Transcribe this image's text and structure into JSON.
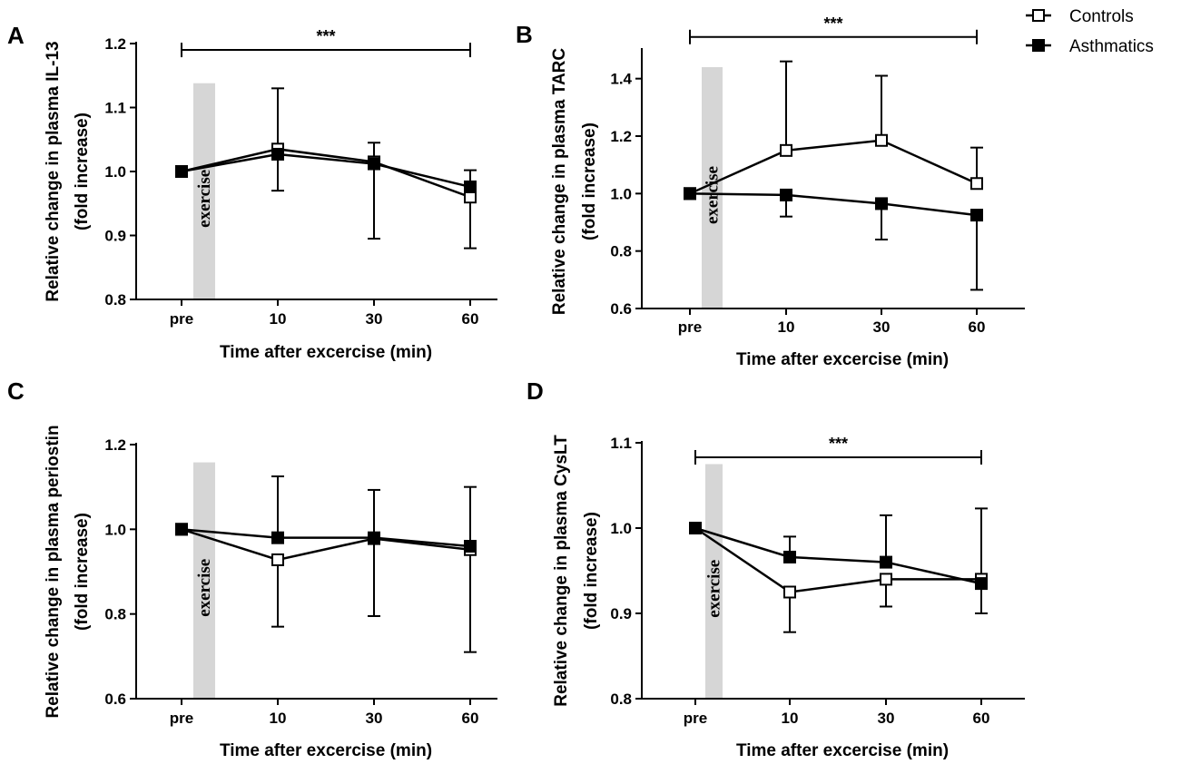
{
  "legend": {
    "items": [
      {
        "label": "Controls",
        "marker": "open-square"
      },
      {
        "label": "Asthmatics",
        "marker": "filled-square"
      }
    ]
  },
  "chart_data": [
    {
      "panel": "A",
      "type": "line",
      "categories": [
        "pre",
        "10",
        "30",
        "60"
      ],
      "xlabel": "Time after excercise (min)",
      "ylabel": [
        "Relative change in plasma IL-13",
        "(fold increase)"
      ],
      "ylim": [
        0.8,
        1.2
      ],
      "yticks": [
        0.8,
        0.9,
        1.0,
        1.1,
        1.2
      ],
      "ytick_labels": [
        "0.8",
        "0.9",
        "1.0",
        "1.1",
        "1.2"
      ],
      "series": [
        {
          "name": "Controls",
          "marker": "open-square",
          "values": [
            1.0,
            1.035,
            1.015,
            0.96
          ],
          "err_upper": [
            null,
            1.13,
            1.045,
            null
          ],
          "err_lower": [
            null,
            null,
            null,
            0.88
          ]
        },
        {
          "name": "Asthmatics",
          "marker": "filled-square",
          "values": [
            1.0,
            1.027,
            1.012,
            0.976
          ],
          "err_upper": [
            null,
            null,
            null,
            1.002
          ],
          "err_lower": [
            null,
            0.97,
            0.895,
            null
          ]
        }
      ],
      "annotation": {
        "type": "significance-bracket",
        "label": "***",
        "from": "pre",
        "to": "60",
        "y": 1.19
      },
      "shaded_band": {
        "label": "exercise",
        "top": 1.138
      }
    },
    {
      "panel": "B",
      "type": "line",
      "categories": [
        "pre",
        "10",
        "30",
        "60"
      ],
      "xlabel": "Time after excercise (min)",
      "ylabel": [
        "Relative change in plasma TARC",
        "(fold increase)"
      ],
      "ylim": [
        0.6,
        1.5
      ],
      "yticks": [
        0.6,
        0.8,
        1.0,
        1.2,
        1.4
      ],
      "ytick_labels": [
        "0.6",
        "0.8",
        "1.0",
        "1.2",
        "1.4"
      ],
      "series": [
        {
          "name": "Controls",
          "marker": "open-square",
          "values": [
            1.0,
            1.15,
            1.185,
            1.035
          ],
          "err_upper": [
            null,
            1.46,
            1.41,
            1.16
          ],
          "err_lower": [
            null,
            null,
            null,
            null
          ]
        },
        {
          "name": "Asthmatics",
          "marker": "filled-square",
          "values": [
            1.0,
            0.995,
            0.965,
            0.925
          ],
          "err_upper": [
            null,
            null,
            null,
            null
          ],
          "err_lower": [
            null,
            0.92,
            0.84,
            0.665
          ]
        }
      ],
      "annotation": {
        "type": "significance-bracket",
        "label": "***",
        "from": "pre",
        "to": "60",
        "y": 1.545
      },
      "shaded_band": {
        "label": "exercise",
        "top": 1.44
      }
    },
    {
      "panel": "C",
      "type": "line",
      "categories": [
        "pre",
        "10",
        "30",
        "60"
      ],
      "xlabel": "Time after excercise (min)",
      "ylabel": [
        "Relative change in plasma periostin",
        "(fold increase)"
      ],
      "ylim": [
        0.6,
        1.2
      ],
      "yticks": [
        0.6,
        0.8,
        1.0,
        1.2
      ],
      "ytick_labels": [
        "0.6",
        "0.8",
        "1.0",
        "1.2"
      ],
      "series": [
        {
          "name": "Controls",
          "marker": "open-square",
          "values": [
            1.0,
            0.928,
            0.978,
            0.952
          ],
          "err_upper": [
            null,
            null,
            null,
            1.1
          ],
          "err_lower": [
            null,
            0.77,
            0.795,
            0.71
          ]
        },
        {
          "name": "Asthmatics",
          "marker": "filled-square",
          "values": [
            1.0,
            0.98,
            0.98,
            0.96
          ],
          "err_upper": [
            null,
            1.125,
            1.093,
            null
          ],
          "err_lower": [
            null,
            null,
            null,
            null
          ]
        }
      ],
      "annotation": null,
      "shaded_band": {
        "label": "exercise",
        "top": 1.158
      }
    },
    {
      "panel": "D",
      "type": "line",
      "categories": [
        "pre",
        "10",
        "30",
        "60"
      ],
      "xlabel": "Time after excercise (min)",
      "ylabel": [
        "Relative change in plasma CysLT",
        "(fold increase)"
      ],
      "ylim": [
        0.8,
        1.1
      ],
      "yticks": [
        0.8,
        0.9,
        1.0,
        1.1
      ],
      "ytick_labels": [
        "0.8",
        "0.9",
        "1.0",
        "1.1"
      ],
      "series": [
        {
          "name": "Controls",
          "marker": "open-square",
          "values": [
            1.0,
            0.925,
            0.94,
            0.94
          ],
          "err_upper": [
            null,
            null,
            null,
            1.023
          ],
          "err_lower": [
            null,
            0.878,
            0.908,
            null
          ]
        },
        {
          "name": "Asthmatics",
          "marker": "filled-square",
          "values": [
            1.0,
            0.966,
            0.96,
            0.935
          ],
          "err_upper": [
            null,
            0.99,
            1.015,
            null
          ],
          "err_lower": [
            null,
            null,
            null,
            0.9
          ]
        }
      ],
      "annotation": {
        "type": "significance-bracket",
        "label": "***",
        "from": "pre",
        "to": "60",
        "y": 1.083
      },
      "shaded_band": {
        "label": "exercise",
        "top": 1.075
      }
    }
  ]
}
